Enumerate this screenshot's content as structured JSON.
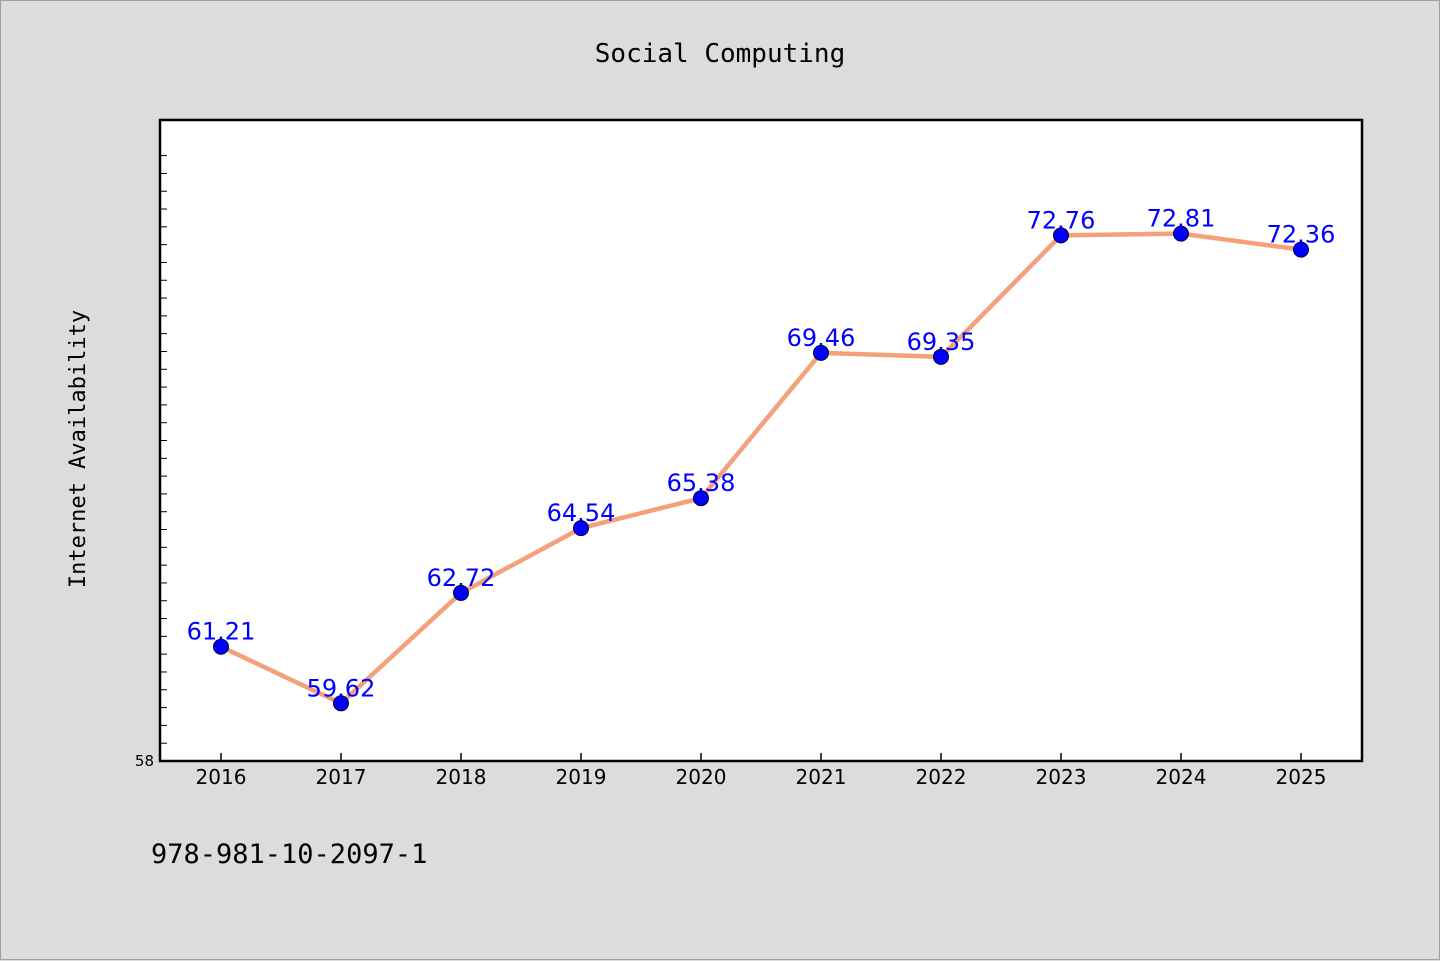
{
  "chart_data": {
    "type": "line",
    "title": "Social Computing",
    "ylabel": "Internet Availability",
    "xlabel": "",
    "categories": [
      "2016",
      "2017",
      "2018",
      "2019",
      "2020",
      "2021",
      "2022",
      "2023",
      "2024",
      "2025"
    ],
    "series": [
      {
        "values": [
          61.21,
          59.62,
          62.72,
          64.54,
          65.38,
          69.46,
          69.35,
          72.76,
          72.81,
          72.36
        ],
        "labels": [
          "61.21",
          "59.62",
          "62.72",
          "64.54",
          "65.38",
          "69.46",
          "69.35",
          "72.76",
          "72.81",
          "72.36"
        ],
        "line_color": "#f4a07a",
        "marker_color": "#0000ff",
        "label_color": "#0000ff"
      }
    ],
    "ylim": [
      58,
      76
    ],
    "y_tick_labels": [
      "58"
    ],
    "grid": false,
    "legend": "none"
  },
  "footnote": "978-981-10-2097-1"
}
